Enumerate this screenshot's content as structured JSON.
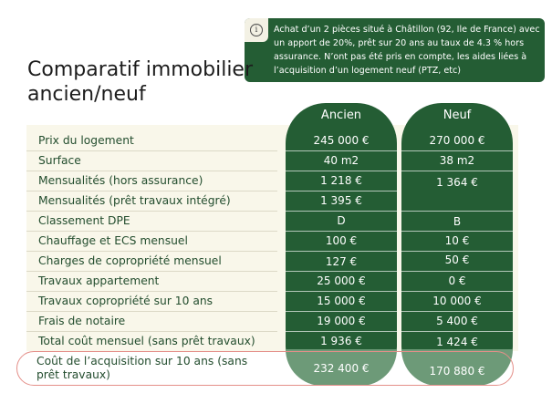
{
  "info": {
    "text": "Achat d’un 2 pièces situé à Châtillon (92, Ile de France) avec un apport de 20%, prêt sur 20 ans au taux de 4.3 % hors assurance. N’ont pas été pris en compte, les aides liées à l’acquisition d’un logement neuf (PTZ, etc)"
  },
  "title": "Comparatif immobilier ancien/neuf",
  "columns": {
    "ancien": "Ancien",
    "neuf": "Neuf"
  },
  "rows": [
    {
      "label": "Prix du logement",
      "ancien": "245 000 €",
      "neuf": "270 000 €"
    },
    {
      "label": "Surface",
      "ancien": "40 m2",
      "neuf": "38 m2"
    },
    {
      "label": "Mensualités (hors assurance)",
      "ancien": "1 218 €",
      "neuf": "1 364 €"
    },
    {
      "label": "Mensualités (prêt travaux intégré)",
      "ancien": "1 395 €",
      "neuf": ""
    },
    {
      "label": "Classement DPE",
      "ancien": "D",
      "neuf": "B"
    },
    {
      "label": "Chauffage et ECS mensuel",
      "ancien": "100 €",
      "neuf": "10 €"
    },
    {
      "label": "Charges de copropriété mensuel",
      "ancien": "127 €",
      "neuf": "50 €"
    },
    {
      "label": "Travaux appartement",
      "ancien": "25 000 €",
      "neuf": "0 €"
    },
    {
      "label": "Travaux copropriété sur 10 ans",
      "ancien": "15 000 €",
      "neuf": "10 000 €"
    },
    {
      "label": "Frais de notaire",
      "ancien": "19 000 €",
      "neuf": "5 400 €"
    },
    {
      "label": "Total coût mensuel (sans prêt travaux)",
      "ancien": "1 936 €",
      "neuf": "1 424 €"
    }
  ],
  "total": {
    "label": "Coût de l’acquisition sur 10 ans (sans prêt travaux)",
    "ancien": "232 400 €",
    "neuf": "170 880 €"
  },
  "colors": {
    "dark_green": "#245d34",
    "light_green": "#6d9a78",
    "panel": "#f9f7ea",
    "highlight_border": "#e48f89"
  }
}
